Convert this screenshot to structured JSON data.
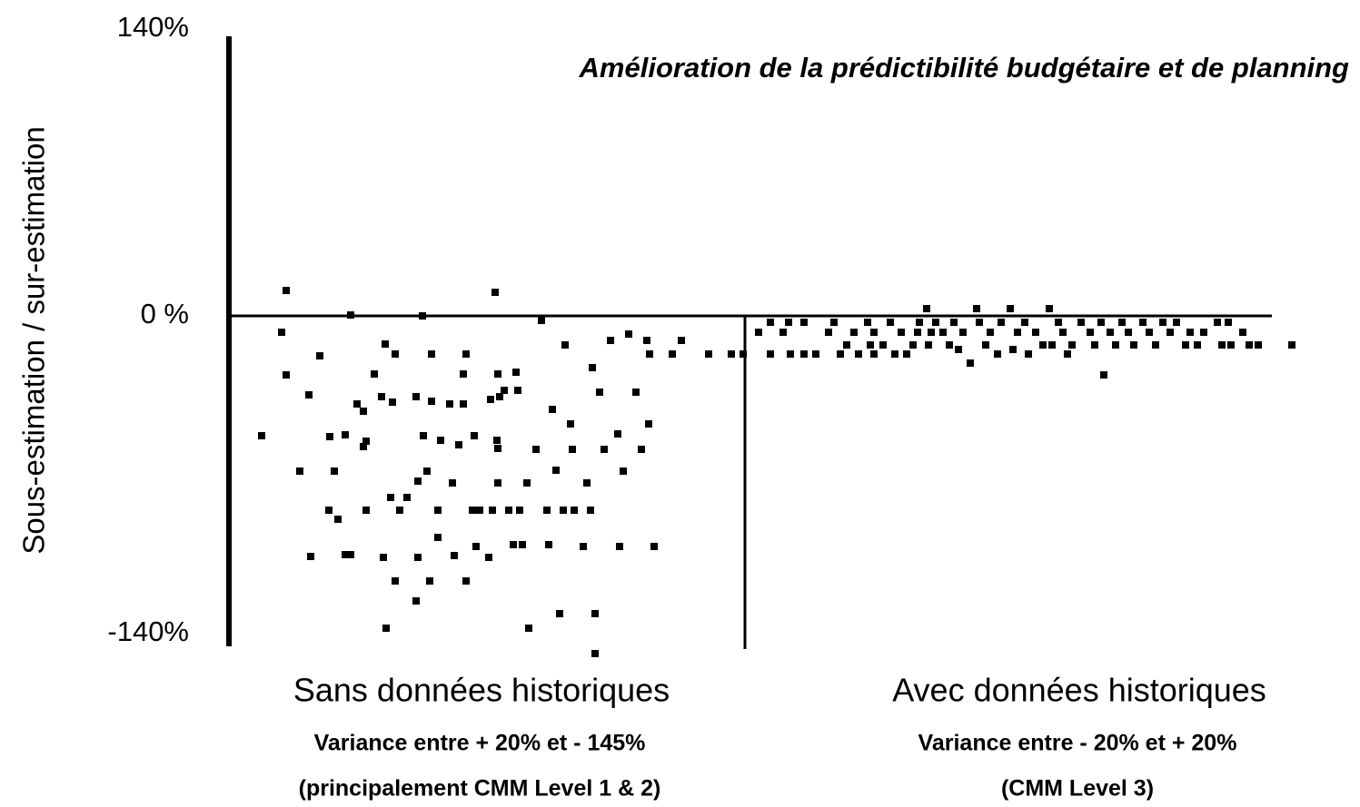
{
  "chart_data": {
    "type": "scatter",
    "title": "Amélioration de la prédictibilité budgétaire et de planning",
    "y_label": "Sous-estimation / sur-estimation",
    "xlim": [
      0,
      1188
    ],
    "ylim": [
      -150,
      140
    ],
    "yticks": [
      {
        "value": 140,
        "label": "140%"
      },
      {
        "value": 0,
        "label": "0 %"
      },
      {
        "value": -140,
        "label": "-140%"
      }
    ],
    "grid": false,
    "series": [
      {
        "name": "Sans données historiques",
        "color": "#000000",
        "description": [
          "Variance entre + 20% et  - 145%",
          "(principalement CMM Level 1 & 2)"
        ],
        "x": [
          63,
          58,
          63,
          36,
          78,
          88,
          100,
          116,
          111,
          110,
          120,
          90,
          128,
          134,
          134,
          128,
          141,
          148,
          148,
          151,
          151,
          160,
          168,
          172,
          180,
          183,
          170,
          183,
          173,
          178,
          188,
          196,
          206,
          208,
          206,
          208,
          213,
          214,
          218,
          221,
          223,
          223,
          230,
          230,
          233,
          243,
          246,
          248,
          253,
          258,
          258,
          261,
          261,
          268,
          270,
          272,
          276,
          286,
          288,
          290,
          293,
          296,
          295,
          298,
          296,
          296,
          303,
          308,
          313,
          316,
          320,
          323,
          318,
          328,
          330,
          338,
          344,
          350,
          352,
          356,
          360,
          364,
          368,
          370,
          376,
          378,
          380,
          390,
          394,
          398,
          400,
          403,
          403,
          408,
          413,
          420,
          428,
          430,
          434,
          440,
          448,
          454,
          460,
          462,
          463,
          468,
          488,
          498,
          528,
          553,
          566
        ],
        "values": [
          11.2,
          -7.2,
          -26,
          -52.8,
          -68.4,
          -34.8,
          -17.6,
          -68.4,
          -53.2,
          -85.6,
          -89.6,
          -106,
          -105.2,
          -105.2,
          0.4,
          -52.4,
          -38.8,
          -42,
          -57.6,
          -55.2,
          -85.6,
          -25.6,
          -35.6,
          -12.4,
          -38,
          -16.8,
          -106.4,
          -116.8,
          -137.6,
          -80,
          -85.6,
          -80,
          -125.6,
          -106.4,
          -35.6,
          -72.8,
          0,
          -52.8,
          -68.4,
          -116.8,
          -16.8,
          -37.6,
          -85.6,
          -97.6,
          -54.8,
          -38.8,
          -73.6,
          -105.6,
          -56.8,
          -25.6,
          -38.8,
          -16.8,
          -116.8,
          -85.6,
          -52.8,
          -101.6,
          -85.6,
          -106.4,
          -36.8,
          -85.6,
          10.4,
          -25.6,
          -54.8,
          -35.6,
          -58.4,
          -73.6,
          -32.8,
          -85.6,
          -100.8,
          -24.8,
          -85.6,
          -100.8,
          -32.8,
          -73.6,
          -137.6,
          -58.8,
          -2,
          -85.6,
          -100.8,
          -41.2,
          -68,
          -131.2,
          -85.6,
          -12.8,
          -47.6,
          -58.8,
          -85.6,
          -101.6,
          -73.6,
          -85.6,
          -22.8,
          -131.2,
          -148.8,
          -33.6,
          -58.8,
          -10.8,
          -52,
          -101.6,
          -68.4,
          -8,
          -33.6,
          -58.8,
          -10.8,
          -47.6,
          -16.8,
          -101.6,
          -16.8,
          -10.8,
          -16.8,
          -16.8,
          -16.8
        ]
      },
      {
        "name": "Avec données historiques",
        "color": "#000000",
        "description": [
          "Variance entre - 20% et + 20%",
          "(CMM Level 3)"
        ],
        "x": [
          583,
          596,
          596,
          610,
          616,
          618,
          633,
          633,
          646,
          660,
          666,
          673,
          680,
          688,
          693,
          703,
          706,
          710,
          710,
          720,
          728,
          733,
          740,
          746,
          753,
          758,
          760,
          768,
          770,
          773,
          778,
          786,
          793,
          798,
          803,
          808,
          816,
          823,
          826,
          833,
          838,
          846,
          850,
          860,
          863,
          868,
          876,
          880,
          888,
          896,
          903,
          906,
          913,
          918,
          923,
          928,
          938,
          948,
          953,
          960,
          963,
          970,
          976,
          983,
          990,
          996,
          1006,
          1013,
          1020,
          1028,
          1036,
          1043,
          1053,
          1058,
          1066,
          1073,
          1088,
          1093,
          1100,
          1103,
          1116,
          1123,
          1133,
          1170
        ],
        "values": [
          -7.2,
          -2.8,
          -16.8,
          -7.2,
          -2.8,
          -16.8,
          -2.8,
          -16.8,
          -16.8,
          -7.2,
          -2.8,
          -16.8,
          -12.8,
          -7.2,
          -16.8,
          -2.8,
          -12.8,
          -7.2,
          -16.8,
          -12.8,
          -2.8,
          -16.8,
          -7.2,
          -16.8,
          -12.8,
          -7.2,
          -2.8,
          3.2,
          -12.8,
          -7.2,
          -2.8,
          -7.2,
          -12.8,
          -2.8,
          -14.8,
          -7.2,
          -20.8,
          3.2,
          -2.8,
          -12.8,
          -7.2,
          -16.8,
          -2.8,
          3.2,
          -14.8,
          -7.2,
          -2.8,
          -16.8,
          -7.2,
          -12.8,
          3.2,
          -12.8,
          -2.8,
          -7.2,
          -16.8,
          -12.8,
          -2.8,
          -7.2,
          -12.8,
          -2.8,
          -26,
          -7.2,
          -12.8,
          -2.8,
          -7.2,
          -12.8,
          -2.8,
          -7.2,
          -12.8,
          -2.8,
          -7.2,
          -2.8,
          -12.8,
          -7.2,
          -12.8,
          -7.2,
          -2.8,
          -12.8,
          -2.8,
          -12.8,
          -7.2,
          -12.8,
          -12.8,
          -12.8
        ]
      }
    ]
  }
}
